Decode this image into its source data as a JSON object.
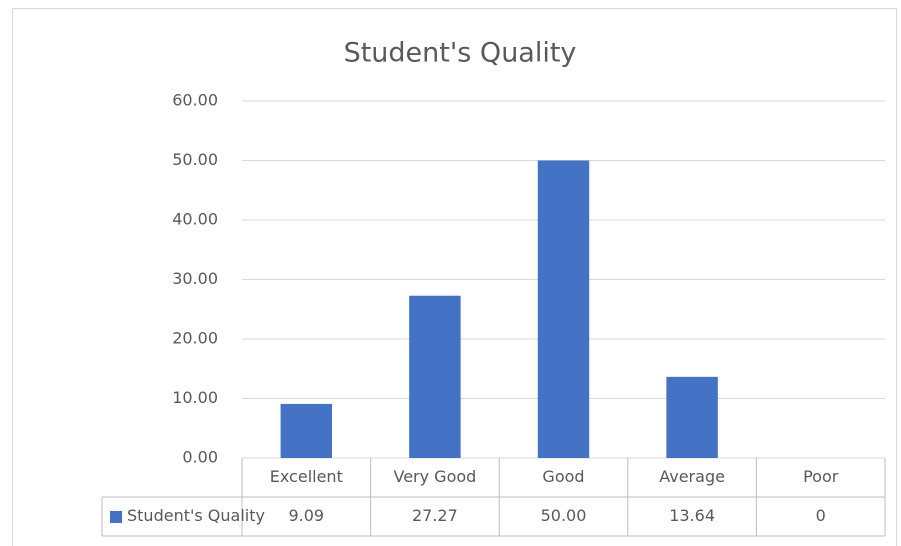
{
  "chart_data": {
    "type": "bar",
    "title": "Student's Quality",
    "categories": [
      "Excellent",
      "Very Good",
      "Good",
      "Average",
      "Poor"
    ],
    "series": [
      {
        "name": "Student's Quality",
        "color": "#4472c4",
        "values": [
          9.09,
          27.27,
          50,
          13.64,
          0
        ],
        "value_labels": [
          "9.09",
          "27.27",
          "50.00",
          "13.64",
          "0"
        ]
      }
    ],
    "ylim": [
      0,
      60
    ],
    "yticks": [
      {
        "value": 0,
        "label": "0.00"
      },
      {
        "value": 10,
        "label": "10.00"
      },
      {
        "value": 20,
        "label": "20.00"
      },
      {
        "value": 30,
        "label": "30.00"
      },
      {
        "value": 40,
        "label": "40.00"
      },
      {
        "value": 50,
        "label": "50.00"
      },
      {
        "value": 60,
        "label": "60.00"
      }
    ],
    "grid": true,
    "legend": "data-table"
  }
}
